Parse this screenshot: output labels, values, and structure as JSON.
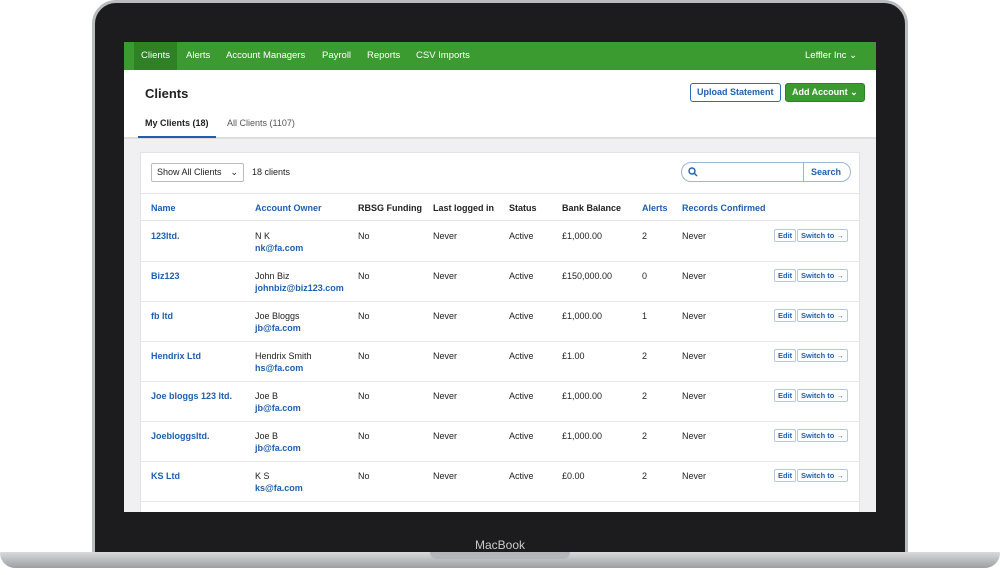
{
  "nav": {
    "items": [
      "Clients",
      "Alerts",
      "Account Managers",
      "Payroll",
      "Reports",
      "CSV Imports"
    ],
    "account": "Leffler Inc"
  },
  "header": {
    "title": "Clients",
    "buttons": [
      "Upload Statement",
      "Add Account"
    ]
  },
  "tabs": [
    "My Clients (18)",
    "All Clients (1107)"
  ],
  "toolbar": {
    "filter": "Show All Clients",
    "count": "18 clients",
    "search_button": "Search"
  },
  "table": {
    "columns": [
      "Name",
      "Account Owner",
      "RBSG Funding",
      "Last logged in",
      "Status",
      "Bank Balance",
      "Alerts",
      "Records Confirmed"
    ],
    "row_actions": [
      "Edit",
      "Switch to →"
    ],
    "rows": [
      {
        "name": "123ltd.",
        "owner": "N K",
        "email": "nk@fa.com",
        "funding": "No",
        "last_login": "Never",
        "status": "Active",
        "balance": "£1,000.00",
        "alerts": "2",
        "confirmed": "Never"
      },
      {
        "name": "Biz123",
        "owner": "John Biz",
        "email": "johnbiz@biz123.com",
        "funding": "No",
        "last_login": "Never",
        "status": "Active",
        "balance": "£150,000.00",
        "alerts": "0",
        "confirmed": "Never"
      },
      {
        "name": "fb ltd",
        "owner": "Joe Bloggs",
        "email": "jb@fa.com",
        "funding": "No",
        "last_login": "Never",
        "status": "Active",
        "balance": "£1,000.00",
        "alerts": "1",
        "confirmed": "Never"
      },
      {
        "name": "Hendrix Ltd",
        "owner": "Hendrix Smith",
        "email": "hs@fa.com",
        "funding": "No",
        "last_login": "Never",
        "status": "Active",
        "balance": "£1.00",
        "alerts": "2",
        "confirmed": "Never"
      },
      {
        "name": "Joe bloggs 123 ltd.",
        "owner": "Joe B",
        "email": "jb@fa.com",
        "funding": "No",
        "last_login": "Never",
        "status": "Active",
        "balance": "£1,000.00",
        "alerts": "2",
        "confirmed": "Never"
      },
      {
        "name": "Joebloggsltd.",
        "owner": "Joe B",
        "email": "jb@fa.com",
        "funding": "No",
        "last_login": "Never",
        "status": "Active",
        "balance": "£1,000.00",
        "alerts": "2",
        "confirmed": "Never"
      },
      {
        "name": "KS Ltd",
        "owner": "K S",
        "email": "ks@fa.com",
        "funding": "No",
        "last_login": "Never",
        "status": "Active",
        "balance": "£0.00",
        "alerts": "2",
        "confirmed": "Never"
      }
    ]
  },
  "device": {
    "label": "MacBook"
  }
}
